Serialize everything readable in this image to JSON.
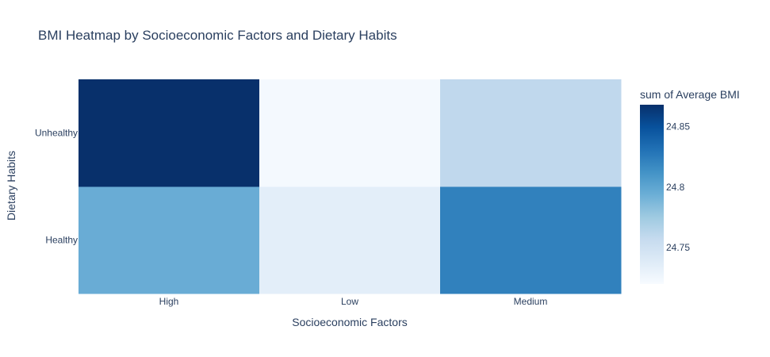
{
  "chart_data": {
    "type": "heatmap",
    "title": "BMI Heatmap by Socioeconomic Factors and Dietary Habits",
    "xlabel": "Socioeconomic Factors",
    "ylabel": "Dietary Habits",
    "x": [
      "High",
      "Low",
      "Medium"
    ],
    "y": [
      "Healthy",
      "Unhealthy"
    ],
    "z": [
      [
        24.795,
        24.735,
        24.822
      ],
      [
        24.868,
        24.722,
        24.76
      ]
    ],
    "colorbar": {
      "title": "sum of Average BMI",
      "range": [
        24.72,
        24.868
      ],
      "ticks": [
        24.75,
        24.8,
        24.85
      ],
      "tick_labels": [
        "24.75",
        "24.8",
        "24.85"
      ]
    },
    "colorscale": "Blues",
    "colorscale_stops": [
      "#f7fbff",
      "#deebf7",
      "#c6dbef",
      "#9ecae1",
      "#6baed6",
      "#4292c6",
      "#2171b5",
      "#08519c",
      "#08306b"
    ]
  }
}
